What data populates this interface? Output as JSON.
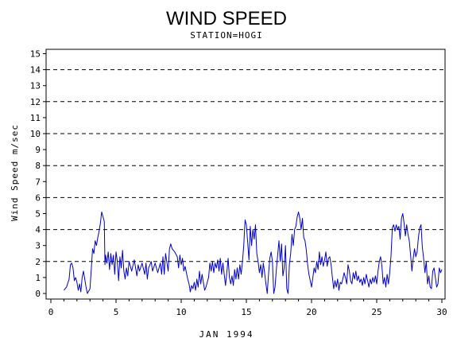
{
  "chart_data": {
    "type": "line",
    "title": "WIND SPEED",
    "subtitle": "STATION=HOGI",
    "xlabel": "JAN 1994",
    "ylabel": "Wind Speed m/sec",
    "xlim": [
      0,
      30
    ],
    "ylim": [
      0,
      15
    ],
    "x_ticks": [
      "0",
      "5",
      "10",
      "15",
      "20",
      "25",
      "30"
    ],
    "y_ticks": [
      "0",
      "1",
      "2",
      "3",
      "4",
      "5",
      "6",
      "7",
      "8",
      "9",
      "10",
      "11",
      "12",
      "13",
      "14",
      "15"
    ],
    "reference_lines": [
      2,
      4,
      6,
      8,
      10,
      12,
      14
    ],
    "grid": false,
    "colors": {
      "series": "#0000cc",
      "axes": "#000000",
      "reference": "#000000"
    },
    "series": [
      {
        "points": [
          [
            1.0,
            0.2
          ],
          [
            1.2,
            0.4
          ],
          [
            1.4,
            0.9
          ],
          [
            1.5,
            1.8
          ],
          [
            1.6,
            1.9
          ],
          [
            1.7,
            1.6
          ],
          [
            1.8,
            0.8
          ],
          [
            1.9,
            1.0
          ],
          [
            2.0,
            0.7
          ],
          [
            2.1,
            0.2
          ],
          [
            2.2,
            0.6
          ],
          [
            2.3,
            0.1
          ],
          [
            2.4,
            1.0
          ],
          [
            2.5,
            1.4
          ],
          [
            2.6,
            0.9
          ],
          [
            2.7,
            0.4
          ],
          [
            2.8,
            0.0
          ],
          [
            3.0,
            0.3
          ],
          [
            3.1,
            1.5
          ],
          [
            3.2,
            2.8
          ],
          [
            3.3,
            2.5
          ],
          [
            3.4,
            3.3
          ],
          [
            3.5,
            3.0
          ],
          [
            3.6,
            3.5
          ],
          [
            3.7,
            3.9
          ],
          [
            3.8,
            4.4
          ],
          [
            3.9,
            5.1
          ],
          [
            4.0,
            4.8
          ],
          [
            4.1,
            4.5
          ],
          [
            4.15,
            1.8
          ],
          [
            4.2,
            2.4
          ],
          [
            4.3,
            1.9
          ],
          [
            4.4,
            2.6
          ],
          [
            4.5,
            1.5
          ],
          [
            4.6,
            2.5
          ],
          [
            4.7,
            1.8
          ],
          [
            4.8,
            2.4
          ],
          [
            4.9,
            1.2
          ],
          [
            5.0,
            2.6
          ],
          [
            5.1,
            2.0
          ],
          [
            5.2,
            0.8
          ],
          [
            5.3,
            2.3
          ],
          [
            5.4,
            1.6
          ],
          [
            5.5,
            2.7
          ],
          [
            5.6,
            1.4
          ],
          [
            5.7,
            0.9
          ],
          [
            5.8,
            1.6
          ],
          [
            5.9,
            1.1
          ],
          [
            6.0,
            2.0
          ],
          [
            6.2,
            1.4
          ],
          [
            6.4,
            2.1
          ],
          [
            6.6,
            1.1
          ],
          [
            6.7,
            1.8
          ],
          [
            6.8,
            1.4
          ],
          [
            7.0,
            1.9
          ],
          [
            7.2,
            1.2
          ],
          [
            7.3,
            1.9
          ],
          [
            7.4,
            0.9
          ],
          [
            7.5,
            1.6
          ],
          [
            7.7,
            2.0
          ],
          [
            7.8,
            1.4
          ],
          [
            8.0,
            1.9
          ],
          [
            8.2,
            1.3
          ],
          [
            8.4,
            1.9
          ],
          [
            8.5,
            1.2
          ],
          [
            8.6,
            2.3
          ],
          [
            8.7,
            1.2
          ],
          [
            8.8,
            2.5
          ],
          [
            9.0,
            1.4
          ],
          [
            9.1,
            2.8
          ],
          [
            9.2,
            3.1
          ],
          [
            9.3,
            2.8
          ],
          [
            9.5,
            2.6
          ],
          [
            9.7,
            2.3
          ],
          [
            9.8,
            1.6
          ],
          [
            9.9,
            2.4
          ],
          [
            10.0,
            1.8
          ],
          [
            10.1,
            2.2
          ],
          [
            10.2,
            1.4
          ],
          [
            10.3,
            1.7
          ],
          [
            10.4,
            1.3
          ],
          [
            10.5,
            0.9
          ],
          [
            10.6,
            0.6
          ],
          [
            10.7,
            0.1
          ],
          [
            10.8,
            0.5
          ],
          [
            10.9,
            0.3
          ],
          [
            11.0,
            0.7
          ],
          [
            11.1,
            0.2
          ],
          [
            11.2,
            0.9
          ],
          [
            11.3,
            0.4
          ],
          [
            11.4,
            1.4
          ],
          [
            11.5,
            0.6
          ],
          [
            11.6,
            1.2
          ],
          [
            11.7,
            0.7
          ],
          [
            11.8,
            0.2
          ],
          [
            11.9,
            0.4
          ],
          [
            12.0,
            0.7
          ],
          [
            12.1,
            1.0
          ],
          [
            12.2,
            1.9
          ],
          [
            12.3,
            1.4
          ],
          [
            12.4,
            2.0
          ],
          [
            12.5,
            1.3
          ],
          [
            12.6,
            1.9
          ],
          [
            12.7,
            1.6
          ],
          [
            12.8,
            2.1
          ],
          [
            12.9,
            1.4
          ],
          [
            13.0,
            2.2
          ],
          [
            13.1,
            1.2
          ],
          [
            13.2,
            1.9
          ],
          [
            13.3,
            1.2
          ],
          [
            13.4,
            0.5
          ],
          [
            13.5,
            1.3
          ],
          [
            13.6,
            2.2
          ],
          [
            13.7,
            1.0
          ],
          [
            13.8,
            0.6
          ],
          [
            13.9,
            1.1
          ],
          [
            14.0,
            0.5
          ],
          [
            14.1,
            1.5
          ],
          [
            14.2,
            0.9
          ],
          [
            14.3,
            1.6
          ],
          [
            14.4,
            0.9
          ],
          [
            14.5,
            1.8
          ],
          [
            14.6,
            1.2
          ],
          [
            14.7,
            2.0
          ],
          [
            14.8,
            3.0
          ],
          [
            14.9,
            4.6
          ],
          [
            15.0,
            4.3
          ],
          [
            15.1,
            3.2
          ],
          [
            15.2,
            2.1
          ],
          [
            15.3,
            4.2
          ],
          [
            15.4,
            3.0
          ],
          [
            15.5,
            4.0
          ],
          [
            15.6,
            3.4
          ],
          [
            15.7,
            4.3
          ],
          [
            15.8,
            2.5
          ],
          [
            15.9,
            2.0
          ],
          [
            16.0,
            1.3
          ],
          [
            16.1,
            1.8
          ],
          [
            16.2,
            1.0
          ],
          [
            16.3,
            1.9
          ],
          [
            16.4,
            1.3
          ],
          [
            16.5,
            0.6
          ],
          [
            16.6,
            0.0
          ],
          [
            16.7,
            1.2
          ],
          [
            16.8,
            2.2
          ],
          [
            16.9,
            2.6
          ],
          [
            17.0,
            2.0
          ],
          [
            17.1,
            0.0
          ],
          [
            17.2,
            0.4
          ],
          [
            17.3,
            1.5
          ],
          [
            17.4,
            2.4
          ],
          [
            17.5,
            3.3
          ],
          [
            17.6,
            2.0
          ],
          [
            17.7,
            3.1
          ],
          [
            17.8,
            1.1
          ],
          [
            17.9,
            1.6
          ],
          [
            18.0,
            3.0
          ],
          [
            18.1,
            0.3
          ],
          [
            18.2,
            0.0
          ],
          [
            18.3,
            1.8
          ],
          [
            18.4,
            2.5
          ],
          [
            18.5,
            3.7
          ],
          [
            18.6,
            3.0
          ],
          [
            18.7,
            4.0
          ],
          [
            18.8,
            4.2
          ],
          [
            18.9,
            4.8
          ],
          [
            19.0,
            5.1
          ],
          [
            19.1,
            4.7
          ],
          [
            19.2,
            4.0
          ],
          [
            19.3,
            4.7
          ],
          [
            19.4,
            3.5
          ],
          [
            19.5,
            3.3
          ],
          [
            19.6,
            2.7
          ],
          [
            19.7,
            1.8
          ],
          [
            19.8,
            1.2
          ],
          [
            19.9,
            0.8
          ],
          [
            20.0,
            0.4
          ],
          [
            20.1,
            1.0
          ],
          [
            20.2,
            1.6
          ],
          [
            20.3,
            1.3
          ],
          [
            20.4,
            2.0
          ],
          [
            20.5,
            1.5
          ],
          [
            20.6,
            2.6
          ],
          [
            20.7,
            1.8
          ],
          [
            20.8,
            2.3
          ],
          [
            20.9,
            1.7
          ],
          [
            21.0,
            2.1
          ],
          [
            21.1,
            2.6
          ],
          [
            21.2,
            1.7
          ],
          [
            21.3,
            2.2
          ],
          [
            21.4,
            2.3
          ],
          [
            21.5,
            1.8
          ],
          [
            21.6,
            1.0
          ],
          [
            21.7,
            0.3
          ],
          [
            21.8,
            0.8
          ],
          [
            21.9,
            0.4
          ],
          [
            22.0,
            0.9
          ],
          [
            22.1,
            0.2
          ],
          [
            22.2,
            0.7
          ],
          [
            22.3,
            0.6
          ],
          [
            22.4,
            0.9
          ],
          [
            22.5,
            1.3
          ],
          [
            22.6,
            1.0
          ],
          [
            22.7,
            0.6
          ],
          [
            22.8,
            1.8
          ],
          [
            22.9,
            1.4
          ],
          [
            23.0,
            0.8
          ],
          [
            23.1,
            0.6
          ],
          [
            23.2,
            1.3
          ],
          [
            23.3,
            0.9
          ],
          [
            23.4,
            1.4
          ],
          [
            23.5,
            0.8
          ],
          [
            23.6,
            1.1
          ],
          [
            23.7,
            0.7
          ],
          [
            23.8,
            0.9
          ],
          [
            23.9,
            0.5
          ],
          [
            24.0,
            1.0
          ],
          [
            24.1,
            0.6
          ],
          [
            24.2,
            1.2
          ],
          [
            24.3,
            0.8
          ],
          [
            24.4,
            0.4
          ],
          [
            24.5,
            0.9
          ],
          [
            24.6,
            0.6
          ],
          [
            24.7,
            1.0
          ],
          [
            24.8,
            0.7
          ],
          [
            24.9,
            1.1
          ],
          [
            25.0,
            0.6
          ],
          [
            25.1,
            1.4
          ],
          [
            25.2,
            2.0
          ],
          [
            25.3,
            2.3
          ],
          [
            25.4,
            1.7
          ],
          [
            25.5,
            0.6
          ],
          [
            25.6,
            1.0
          ],
          [
            25.7,
            0.4
          ],
          [
            25.8,
            1.2
          ],
          [
            25.9,
            0.6
          ],
          [
            26.0,
            1.3
          ],
          [
            26.1,
            2.4
          ],
          [
            26.2,
            4.1
          ],
          [
            26.3,
            4.3
          ],
          [
            26.4,
            3.9
          ],
          [
            26.5,
            4.3
          ],
          [
            26.6,
            4.0
          ],
          [
            26.7,
            4.2
          ],
          [
            26.8,
            3.4
          ],
          [
            26.9,
            4.7
          ],
          [
            27.0,
            5.0
          ],
          [
            27.1,
            4.4
          ],
          [
            27.2,
            3.6
          ],
          [
            27.3,
            4.3
          ],
          [
            27.4,
            3.7
          ],
          [
            27.5,
            3.3
          ],
          [
            27.6,
            2.4
          ],
          [
            27.7,
            1.4
          ],
          [
            27.8,
            2.2
          ],
          [
            27.9,
            2.8
          ],
          [
            28.0,
            2.3
          ],
          [
            28.1,
            2.6
          ],
          [
            28.2,
            3.5
          ],
          [
            28.3,
            4.1
          ],
          [
            28.4,
            4.3
          ],
          [
            28.5,
            2.9
          ],
          [
            28.6,
            2.2
          ],
          [
            28.7,
            1.3
          ],
          [
            28.8,
            2.0
          ],
          [
            28.9,
            0.6
          ],
          [
            29.0,
            1.1
          ],
          [
            29.1,
            0.4
          ],
          [
            29.2,
            0.3
          ],
          [
            29.3,
            1.4
          ],
          [
            29.4,
            1.6
          ],
          [
            29.5,
            1.0
          ],
          [
            29.6,
            0.4
          ],
          [
            29.7,
            0.6
          ],
          [
            29.8,
            1.6
          ],
          [
            29.9,
            1.3
          ],
          [
            30.0,
            1.5
          ]
        ]
      }
    ]
  }
}
